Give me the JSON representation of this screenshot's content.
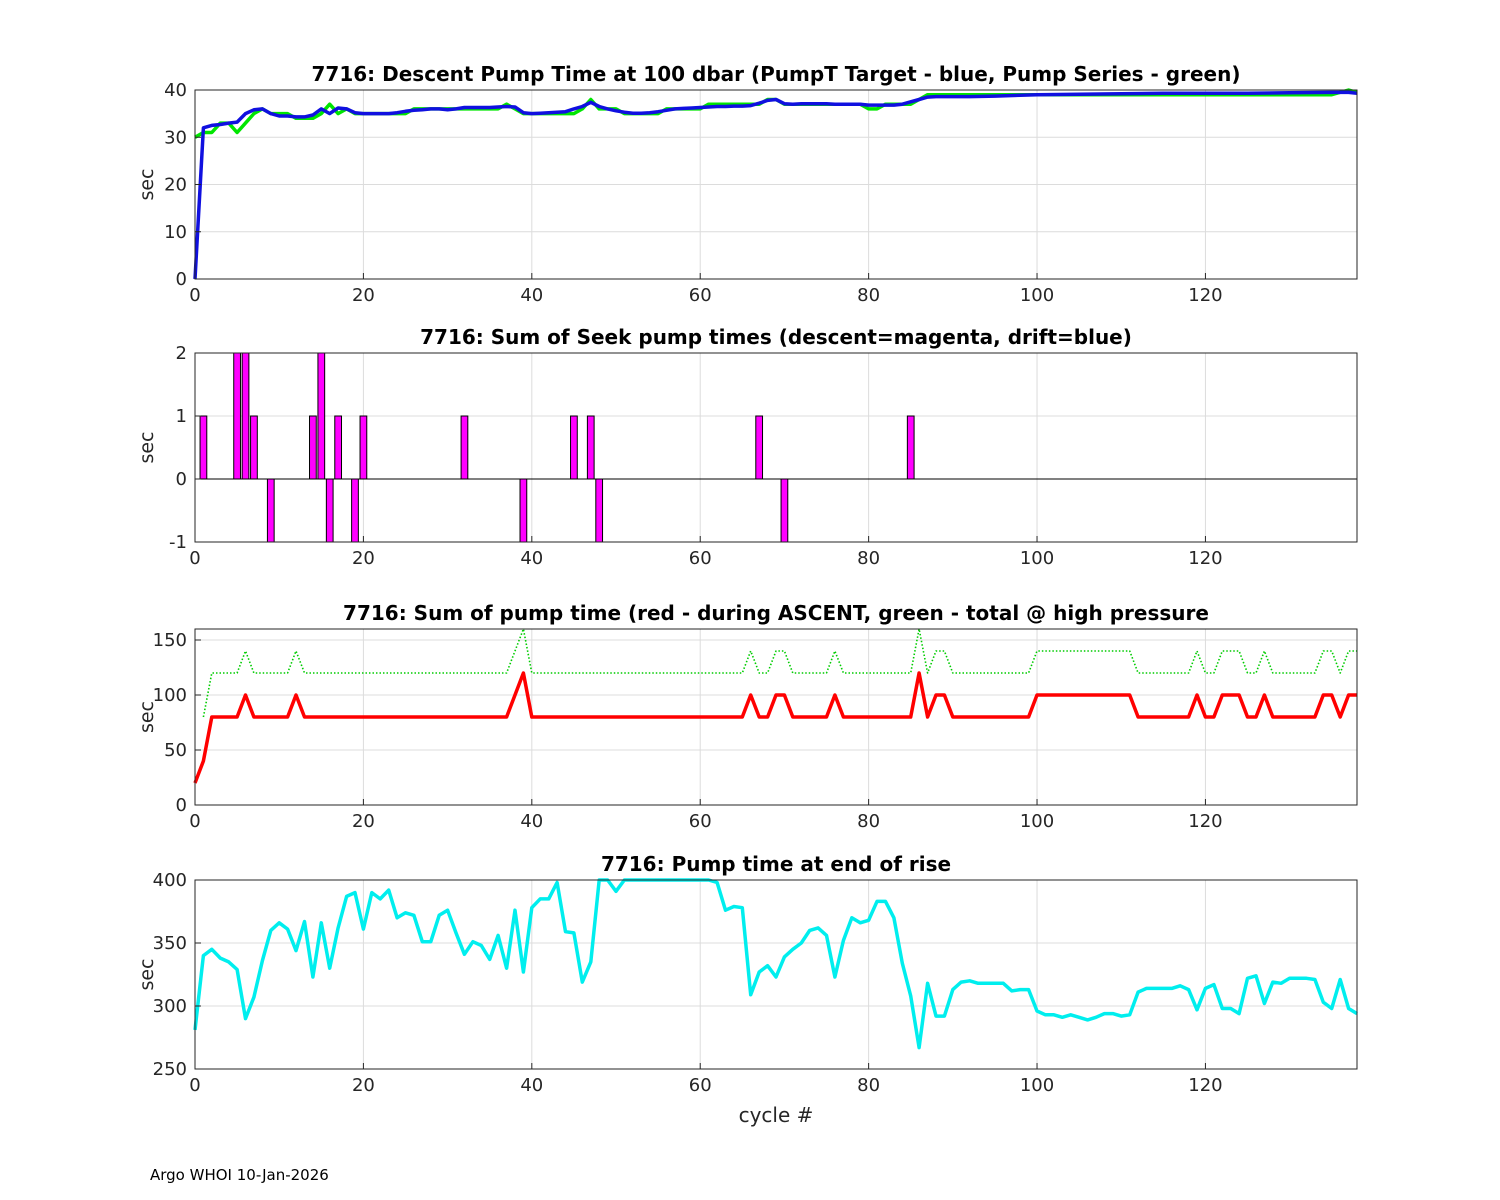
{
  "figure": {
    "xlabel": "cycle #",
    "footer": "Argo WHOI 10-Jan-2026"
  },
  "chart_data": [
    {
      "type": "line",
      "title": "7716: Descent Pump Time at 100 dbar (PumpT Target - blue, Pump Series - green)",
      "xlabel": "",
      "ylabel": "sec",
      "xlim": [
        0,
        138
      ],
      "ylim": [
        0,
        40
      ],
      "xticks": [
        0,
        20,
        40,
        60,
        80,
        100,
        120
      ],
      "yticks": [
        0,
        10,
        20,
        30,
        40
      ],
      "series": [
        {
          "name": "Pump Series",
          "color": "#00e600",
          "style": "solid",
          "x": [
            0,
            1,
            2,
            3,
            4,
            5,
            6,
            7,
            8,
            9,
            10,
            11,
            12,
            13,
            14,
            15,
            16,
            17,
            18,
            19,
            20,
            21,
            22,
            23,
            24,
            25,
            26,
            27,
            28,
            29,
            30,
            31,
            32,
            33,
            34,
            35,
            36,
            37,
            38,
            39,
            40,
            41,
            42,
            43,
            44,
            45,
            46,
            47,
            48,
            49,
            50,
            51,
            52,
            53,
            54,
            55,
            56,
            57,
            58,
            59,
            60,
            61,
            62,
            63,
            64,
            65,
            66,
            67,
            68,
            69,
            70,
            71,
            72,
            73,
            74,
            75,
            76,
            77,
            78,
            79,
            80,
            81,
            82,
            83,
            84,
            85,
            86,
            87,
            88,
            89,
            90,
            92,
            95,
            100,
            105,
            110,
            115,
            120,
            125,
            130,
            135,
            137,
            138
          ],
          "y": [
            30,
            31,
            31,
            33,
            33,
            31,
            33,
            35,
            36,
            35,
            35,
            35,
            34,
            34,
            34,
            35,
            37,
            35,
            36,
            35,
            35,
            35,
            35,
            35,
            35,
            35,
            36,
            36,
            36,
            36,
            36,
            36,
            36,
            36,
            36,
            36,
            36,
            37,
            36,
            35,
            35,
            35,
            35,
            35,
            35,
            35,
            36,
            38,
            36,
            36,
            36,
            35,
            35,
            35,
            35,
            35,
            36,
            36,
            36,
            36,
            36,
            37,
            37,
            37,
            37,
            37,
            37,
            37,
            38,
            38,
            37,
            37,
            37,
            37,
            37,
            37,
            37,
            37,
            37,
            37,
            36,
            36,
            37,
            37,
            37,
            37,
            38,
            39,
            39,
            39,
            39,
            39,
            39,
            39,
            39,
            39,
            39,
            39,
            39,
            39,
            39,
            40,
            39.5
          ]
        },
        {
          "name": "PumpT Target",
          "color": "#1010e0",
          "style": "solid",
          "x": [
            0,
            1,
            2,
            3,
            4,
            5,
            6,
            7,
            8,
            9,
            10,
            11,
            12,
            13,
            14,
            15,
            16,
            17,
            18,
            19,
            20,
            21,
            22,
            23,
            24,
            25,
            26,
            27,
            28,
            29,
            30,
            31,
            32,
            33,
            34,
            35,
            36,
            37,
            38,
            39,
            40,
            41,
            42,
            43,
            44,
            45,
            46,
            47,
            48,
            49,
            50,
            51,
            52,
            53,
            54,
            55,
            56,
            57,
            58,
            59,
            60,
            61,
            62,
            63,
            64,
            65,
            66,
            67,
            68,
            69,
            70,
            71,
            72,
            73,
            74,
            75,
            76,
            77,
            78,
            79,
            80,
            81,
            82,
            83,
            84,
            85,
            86,
            87,
            88,
            89,
            90,
            92,
            95,
            100,
            105,
            110,
            115,
            120,
            125,
            130,
            135,
            137,
            138
          ],
          "y": [
            0,
            32,
            32.5,
            32.7,
            33,
            33.2,
            35,
            35.8,
            36,
            35,
            34.5,
            34.5,
            34.3,
            34.3,
            34.7,
            36,
            35,
            36.2,
            36,
            35.2,
            35,
            35,
            35,
            35,
            35.2,
            35.5,
            35.7,
            35.8,
            36,
            36,
            35.8,
            36,
            36.3,
            36.3,
            36.3,
            36.3,
            36.4,
            36.5,
            36.4,
            35.2,
            35,
            35.1,
            35.2,
            35.3,
            35.4,
            36,
            36.5,
            37.4,
            36.5,
            36,
            35.6,
            35.3,
            35.1,
            35.1,
            35.2,
            35.4,
            35.7,
            36,
            36.1,
            36.2,
            36.3,
            36.4,
            36.5,
            36.5,
            36.6,
            36.6,
            36.7,
            37.2,
            37.8,
            38,
            37.1,
            37,
            37.1,
            37.1,
            37.1,
            37.1,
            37,
            37,
            37,
            37,
            36.8,
            36.8,
            36.8,
            36.8,
            37,
            37.5,
            38,
            38.5,
            38.6,
            38.6,
            38.6,
            38.6,
            38.7,
            39,
            39.1,
            39.2,
            39.3,
            39.3,
            39.3,
            39.4,
            39.5,
            39.5,
            39.3
          ]
        }
      ]
    },
    {
      "type": "bar",
      "title": "7716: Sum of Seek pump times (descent=magenta, drift=blue)",
      "xlabel": "",
      "ylabel": "sec",
      "xlim": [
        0,
        138
      ],
      "ylim": [
        -1,
        2
      ],
      "xticks": [
        0,
        20,
        40,
        60,
        80,
        100,
        120
      ],
      "yticks": [
        -1,
        0,
        1,
        2
      ],
      "series": [
        {
          "name": "descent",
          "color": "#ff00ff",
          "x": [
            1,
            5,
            6,
            7,
            9,
            14,
            15,
            16,
            17,
            19,
            20,
            32,
            39,
            45,
            47,
            48,
            67,
            70,
            85
          ],
          "values": [
            1,
            2,
            2,
            1,
            -1,
            1,
            2,
            -1,
            1,
            -1,
            1,
            1,
            -1,
            1,
            1,
            -1,
            1,
            -1,
            1
          ]
        }
      ]
    },
    {
      "type": "line",
      "title": "7716: Sum of pump time (red - during ASCENT, green - total @ high pressure",
      "xlabel": "",
      "ylabel": "sec",
      "xlim": [
        0,
        138
      ],
      "ylim": [
        0,
        160
      ],
      "xticks": [
        0,
        20,
        40,
        60,
        80,
        100,
        120
      ],
      "yticks": [
        0,
        50,
        100,
        150
      ],
      "series": [
        {
          "name": "total @ high pressure",
          "color": "#00cc00",
          "style": "dotted",
          "x": [
            1,
            2,
            5,
            6,
            7,
            11,
            12,
            13,
            37,
            38,
            39,
            40,
            65,
            66,
            67,
            68,
            69,
            70,
            71,
            75,
            76,
            77,
            85,
            86,
            87,
            88,
            89,
            90,
            99,
            100,
            104,
            111,
            112,
            118,
            119,
            120,
            121,
            122,
            124,
            125,
            126,
            127,
            128,
            133,
            134,
            135,
            136,
            137,
            138
          ],
          "y": [
            80,
            120,
            120,
            140,
            120,
            120,
            140,
            120,
            120,
            140,
            160,
            120,
            120,
            140,
            120,
            120,
            140,
            140,
            120,
            120,
            140,
            120,
            120,
            160,
            120,
            140,
            140,
            120,
            120,
            140,
            140,
            140,
            120,
            120,
            140,
            120,
            120,
            140,
            140,
            120,
            120,
            140,
            120,
            120,
            140,
            140,
            120,
            140,
            140
          ]
        },
        {
          "name": "during ASCENT",
          "color": "#ff0000",
          "style": "solid",
          "x": [
            0,
            1,
            2,
            5,
            6,
            7,
            11,
            12,
            13,
            37,
            38,
            39,
            40,
            65,
            66,
            67,
            68,
            69,
            70,
            71,
            75,
            76,
            77,
            85,
            86,
            87,
            88,
            89,
            90,
            99,
            100,
            111,
            112,
            118,
            119,
            120,
            121,
            122,
            124,
            125,
            126,
            127,
            128,
            133,
            134,
            135,
            136,
            137,
            138
          ],
          "y": [
            20,
            40,
            80,
            80,
            100,
            80,
            80,
            100,
            80,
            80,
            100,
            120,
            80,
            80,
            100,
            80,
            80,
            100,
            100,
            80,
            80,
            100,
            80,
            80,
            120,
            80,
            100,
            100,
            80,
            80,
            100,
            100,
            80,
            80,
            100,
            80,
            80,
            100,
            100,
            80,
            80,
            100,
            80,
            80,
            100,
            100,
            80,
            100,
            100
          ]
        }
      ]
    },
    {
      "type": "line",
      "title": "7716: Pump time at end of rise",
      "xlabel": "cycle #",
      "ylabel": "sec",
      "xlim": [
        0,
        138
      ],
      "ylim": [
        250,
        400
      ],
      "xticks": [
        0,
        20,
        40,
        60,
        80,
        100,
        120
      ],
      "yticks": [
        250,
        300,
        350,
        400
      ],
      "series": [
        {
          "name": "pump time",
          "color": "#00eeee",
          "style": "solid",
          "x": [
            0,
            1,
            2,
            3,
            4,
            5,
            6,
            7,
            8,
            9,
            10,
            11,
            12,
            13,
            14,
            15,
            16,
            17,
            18,
            19,
            20,
            21,
            22,
            23,
            24,
            25,
            26,
            27,
            28,
            29,
            30,
            31,
            32,
            33,
            34,
            35,
            36,
            37,
            38,
            39,
            40,
            41,
            42,
            43,
            44,
            45,
            46,
            47,
            48,
            49,
            50,
            51,
            52,
            53,
            54,
            55,
            56,
            57,
            58,
            59,
            60,
            61,
            62,
            63,
            64,
            65,
            66,
            67,
            68,
            69,
            70,
            71,
            72,
            73,
            74,
            75,
            76,
            77,
            78,
            79,
            80,
            81,
            82,
            83,
            84,
            85,
            86,
            87,
            88,
            89,
            90,
            91,
            92,
            93,
            94,
            95,
            96,
            97,
            98,
            99,
            100,
            101,
            102,
            103,
            104,
            105,
            106,
            107,
            108,
            109,
            110,
            111,
            112,
            113,
            114,
            115,
            116,
            117,
            118,
            119,
            120,
            121,
            122,
            123,
            124,
            125,
            126,
            127,
            128,
            129,
            130,
            131,
            132,
            133,
            134,
            135,
            136,
            137,
            138
          ],
          "y": [
            281,
            340,
            345,
            338,
            335,
            329,
            290,
            307,
            336,
            360,
            366,
            361,
            344,
            367,
            323,
            366,
            330,
            362,
            387,
            390,
            361,
            390,
            385,
            392,
            370,
            374,
            372,
            351,
            351,
            372,
            376,
            358,
            341,
            351,
            348,
            337,
            356,
            330,
            376,
            327,
            378,
            385,
            385,
            398,
            359,
            358,
            319,
            335,
            400,
            400,
            391,
            400,
            400,
            400,
            400,
            400,
            400,
            400,
            400,
            400,
            400,
            400,
            398,
            376,
            379,
            378,
            309,
            327,
            332,
            323,
            339,
            345,
            350,
            360,
            362,
            356,
            323,
            352,
            370,
            366,
            368,
            383,
            383,
            370,
            334,
            308,
            267,
            318,
            292,
            292,
            313,
            319,
            320,
            318,
            318,
            318,
            318,
            312,
            313,
            313,
            296,
            293,
            293,
            291,
            293,
            291,
            289,
            291,
            294,
            294,
            292,
            293,
            311,
            314,
            314,
            314,
            314,
            316,
            313,
            297,
            314,
            317,
            298,
            298,
            294,
            322,
            324,
            302,
            319,
            318,
            322,
            322,
            322,
            321,
            303,
            298,
            321,
            298,
            294
          ]
        }
      ]
    }
  ]
}
